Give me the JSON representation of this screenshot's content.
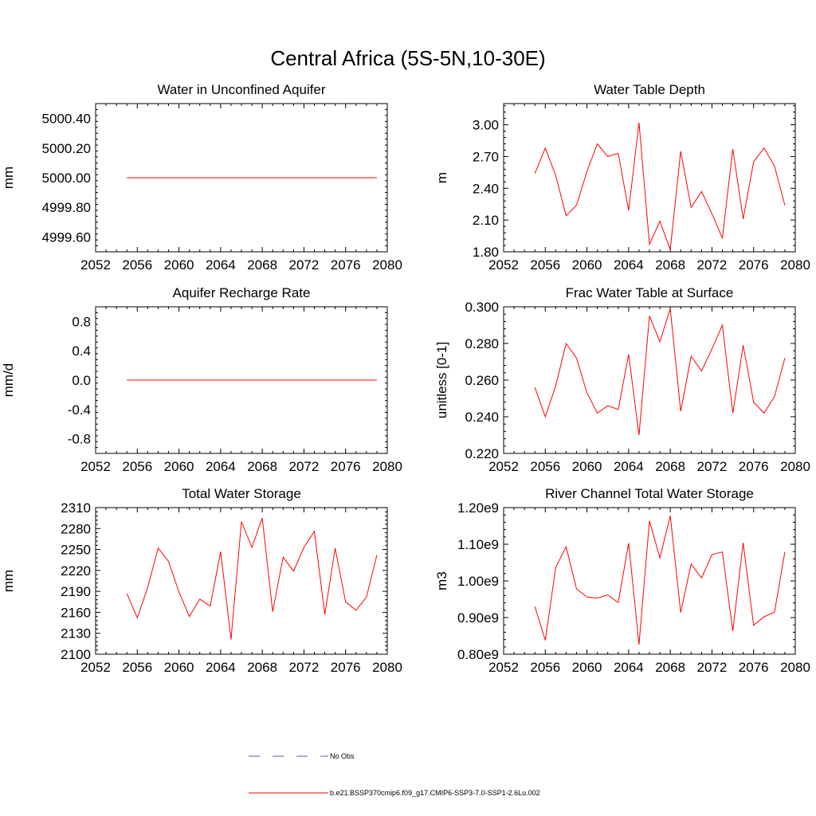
{
  "figure_title": "Central Africa (5S-5N,10-30E)",
  "colors": {
    "series": "#ff0000",
    "obs": "#4b5dbf",
    "axis": "#000000"
  },
  "legend": {
    "position": "bottom-center",
    "entries": [
      {
        "label": "No Obs",
        "style": "dashed",
        "color": "#4b5dbf"
      },
      {
        "label": "b.e21.BSSP370cmip6.f09_g17.CMIP6-SSP3-7.0-SSP1-2.6Lu.002",
        "style": "solid",
        "color": "#ff0000"
      }
    ]
  },
  "chart_data": [
    {
      "type": "line",
      "title": "Water in Unconfined Aquifer",
      "ylabel": "mm",
      "xlim": [
        2052,
        2080
      ],
      "ylim": [
        4999.5,
        5000.5
      ],
      "xticks": [
        "2052",
        "2056",
        "2060",
        "2064",
        "2068",
        "2072",
        "2076",
        "2080"
      ],
      "yticks": [
        "4999.60",
        "4999.80",
        "5000.00",
        "5000.20",
        "5000.40"
      ],
      "ytick_values": [
        4999.6,
        4999.8,
        5000.0,
        5000.2,
        5000.4
      ],
      "x": [
        2055,
        2056,
        2057,
        2058,
        2059,
        2060,
        2061,
        2062,
        2063,
        2064,
        2065,
        2066,
        2067,
        2068,
        2069,
        2070,
        2071,
        2072,
        2073,
        2074,
        2075,
        2076,
        2077,
        2078,
        2079
      ],
      "series": [
        {
          "values": [
            5000,
            5000,
            5000,
            5000,
            5000,
            5000,
            5000,
            5000,
            5000,
            5000,
            5000,
            5000,
            5000,
            5000,
            5000,
            5000,
            5000,
            5000,
            5000,
            5000,
            5000,
            5000,
            5000,
            5000,
            5000
          ]
        }
      ]
    },
    {
      "type": "line",
      "title": "Water Table Depth",
      "ylabel": "m",
      "xlim": [
        2052,
        2080
      ],
      "ylim": [
        1.8,
        3.2
      ],
      "xticks": [
        "2052",
        "2056",
        "2060",
        "2064",
        "2068",
        "2072",
        "2076",
        "2080"
      ],
      "yticks": [
        "1.80",
        "2.10",
        "2.40",
        "2.70",
        "3.00"
      ],
      "ytick_values": [
        1.8,
        2.1,
        2.4,
        2.7,
        3.0
      ],
      "x": [
        2055,
        2056,
        2057,
        2058,
        2059,
        2060,
        2061,
        2062,
        2063,
        2064,
        2065,
        2066,
        2067,
        2068,
        2069,
        2070,
        2071,
        2072,
        2073,
        2074,
        2075,
        2076,
        2077,
        2078,
        2079
      ],
      "series": [
        {
          "values": [
            2.54,
            2.78,
            2.52,
            2.14,
            2.24,
            2.56,
            2.82,
            2.7,
            2.73,
            2.19,
            3.02,
            1.87,
            2.09,
            1.82,
            2.75,
            2.22,
            2.37,
            2.16,
            1.93,
            2.77,
            2.11,
            2.65,
            2.78,
            2.61,
            2.24
          ]
        }
      ]
    },
    {
      "type": "line",
      "title": "Aquifer Recharge Rate",
      "ylabel": "mm/d",
      "xlim": [
        2052,
        2080
      ],
      "ylim": [
        -1.0,
        1.0
      ],
      "xticks": [
        "2052",
        "2056",
        "2060",
        "2064",
        "2068",
        "2072",
        "2076",
        "2080"
      ],
      "yticks": [
        "-0.8",
        "-0.4",
        "0.0",
        "0.4",
        "0.8"
      ],
      "ytick_values": [
        -0.8,
        -0.4,
        0.0,
        0.4,
        0.8
      ],
      "x": [
        2055,
        2056,
        2057,
        2058,
        2059,
        2060,
        2061,
        2062,
        2063,
        2064,
        2065,
        2066,
        2067,
        2068,
        2069,
        2070,
        2071,
        2072,
        2073,
        2074,
        2075,
        2076,
        2077,
        2078,
        2079
      ],
      "series": [
        {
          "values": [
            0,
            0,
            0,
            0,
            0,
            0,
            0,
            0,
            0,
            0,
            0,
            0,
            0,
            0,
            0,
            0,
            0,
            0,
            0,
            0,
            0,
            0,
            0,
            0,
            0
          ]
        }
      ]
    },
    {
      "type": "line",
      "title": "Frac Water Table at Surface",
      "ylabel": "unitless [0-1]",
      "xlim": [
        2052,
        2080
      ],
      "ylim": [
        0.22,
        0.3
      ],
      "xticks": [
        "2052",
        "2056",
        "2060",
        "2064",
        "2068",
        "2072",
        "2076",
        "2080"
      ],
      "yticks": [
        "0.220",
        "0.240",
        "0.260",
        "0.280",
        "0.300"
      ],
      "ytick_values": [
        0.22,
        0.24,
        0.26,
        0.28,
        0.3
      ],
      "x": [
        2055,
        2056,
        2057,
        2058,
        2059,
        2060,
        2061,
        2062,
        2063,
        2064,
        2065,
        2066,
        2067,
        2068,
        2069,
        2070,
        2071,
        2072,
        2073,
        2074,
        2075,
        2076,
        2077,
        2078,
        2079
      ],
      "series": [
        {
          "values": [
            0.256,
            0.24,
            0.257,
            0.28,
            0.272,
            0.253,
            0.242,
            0.246,
            0.244,
            0.274,
            0.23,
            0.295,
            0.281,
            0.299,
            0.243,
            0.273,
            0.265,
            0.277,
            0.29,
            0.242,
            0.279,
            0.248,
            0.242,
            0.251,
            0.272
          ]
        }
      ]
    },
    {
      "type": "line",
      "title": "Total Water Storage",
      "ylabel": "mm",
      "xlim": [
        2052,
        2080
      ],
      "ylim": [
        2100,
        2310
      ],
      "xticks": [
        "2052",
        "2056",
        "2060",
        "2064",
        "2068",
        "2072",
        "2076",
        "2080"
      ],
      "yticks": [
        "2100",
        "2130",
        "2160",
        "2190",
        "2220",
        "2250",
        "2280",
        "2310"
      ],
      "ytick_values": [
        2100,
        2130,
        2160,
        2190,
        2220,
        2250,
        2280,
        2310
      ],
      "x": [
        2055,
        2056,
        2057,
        2058,
        2059,
        2060,
        2061,
        2062,
        2063,
        2064,
        2065,
        2066,
        2067,
        2068,
        2069,
        2070,
        2071,
        2072,
        2073,
        2074,
        2075,
        2076,
        2077,
        2078,
        2079
      ],
      "series": [
        {
          "values": [
            2187,
            2152,
            2196,
            2252,
            2233,
            2189,
            2154,
            2179,
            2169,
            2247,
            2121,
            2290,
            2253,
            2295,
            2161,
            2239,
            2219,
            2253,
            2276,
            2157,
            2252,
            2175,
            2163,
            2182,
            2242
          ]
        }
      ]
    },
    {
      "type": "line",
      "title": "River Channel Total Water Storage",
      "ylabel": "m3",
      "xlim": [
        2052,
        2080
      ],
      "ylim": [
        800000000.0,
        1200000000.0
      ],
      "xticks": [
        "2052",
        "2056",
        "2060",
        "2064",
        "2068",
        "2072",
        "2076",
        "2080"
      ],
      "yticks": [
        "0.80e9",
        "0.90e9",
        "1.00e9",
        "1.10e9",
        "1.20e9"
      ],
      "ytick_values": [
        800000000.0,
        900000000.0,
        1000000000.0,
        1100000000.0,
        1200000000.0
      ],
      "x": [
        2055,
        2056,
        2057,
        2058,
        2059,
        2060,
        2061,
        2062,
        2063,
        2064,
        2065,
        2066,
        2067,
        2068,
        2069,
        2070,
        2071,
        2072,
        2073,
        2074,
        2075,
        2076,
        2077,
        2078,
        2079
      ],
      "series": [
        {
          "values": [
            930000000.0,
            838000000.0,
            1037000000.0,
            1093000000.0,
            978000000.0,
            956000000.0,
            953000000.0,
            962000000.0,
            941000000.0,
            1103000000.0,
            826000000.0,
            1164000000.0,
            1063000000.0,
            1178000000.0,
            914000000.0,
            1046000000.0,
            1008000000.0,
            1072000000.0,
            1079000000.0,
            863000000.0,
            1104000000.0,
            879000000.0,
            902000000.0,
            915000000.0,
            1079000000.0
          ]
        }
      ]
    }
  ]
}
